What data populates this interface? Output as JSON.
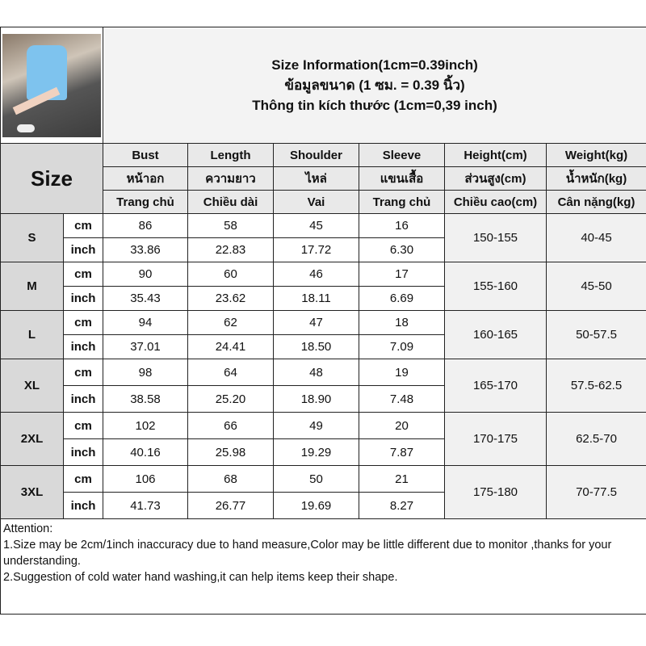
{
  "title": {
    "line1": "Size Information(1cm=0.39inch)",
    "line2": "ข้อมูลขนาด (1 ซม. = 0.39 นิ้ว)",
    "line3": "Thông tin kích thước (1cm=0,39 inch)"
  },
  "size_label": "Size",
  "headers": [
    {
      "en": "Bust",
      "th": "หน้าอก",
      "vi": "Trang chủ"
    },
    {
      "en": "Length",
      "th": "ความยาว",
      "vi": "Chiều dài"
    },
    {
      "en": "Shoulder",
      "th": "ไหล่",
      "vi": "Vai"
    },
    {
      "en": "Sleeve",
      "th": "แขนเสื้อ",
      "vi": "Trang chủ"
    },
    {
      "en": "Height(cm)",
      "th": "ส่วนสูง(cm)",
      "vi": "Chiều cao(cm)"
    },
    {
      "en": "Weight(kg)",
      "th": "น้ำหนัก(kg)",
      "vi": "Cân nặng(kg)"
    }
  ],
  "units": {
    "cm": "cm",
    "inch": "inch"
  },
  "rows": [
    {
      "size": "S",
      "cm": [
        "86",
        "58",
        "45",
        "16"
      ],
      "inch": [
        "33.86",
        "22.83",
        "17.72",
        "6.30"
      ],
      "height": "150-155",
      "weight": "40-45"
    },
    {
      "size": "M",
      "cm": [
        "90",
        "60",
        "46",
        "17"
      ],
      "inch": [
        "35.43",
        "23.62",
        "18.11",
        "6.69"
      ],
      "height": "155-160",
      "weight": "45-50"
    },
    {
      "size": "L",
      "cm": [
        "94",
        "62",
        "47",
        "18"
      ],
      "inch": [
        "37.01",
        "24.41",
        "18.50",
        "7.09"
      ],
      "height": "160-165",
      "weight": "50-57.5"
    },
    {
      "size": "XL",
      "cm": [
        "98",
        "64",
        "48",
        "19"
      ],
      "inch": [
        "38.58",
        "25.20",
        "18.90",
        "7.48"
      ],
      "height": "165-170",
      "weight": "57.5-62.5"
    },
    {
      "size": "2XL",
      "cm": [
        "102",
        "66",
        "49",
        "20"
      ],
      "inch": [
        "40.16",
        "25.98",
        "19.29",
        "7.87"
      ],
      "height": "170-175",
      "weight": "62.5-70"
    },
    {
      "size": "3XL",
      "cm": [
        "106",
        "68",
        "50",
        "21"
      ],
      "inch": [
        "41.73",
        "26.77",
        "19.69",
        "8.27"
      ],
      "height": "175-180",
      "weight": "70-77.5"
    }
  ],
  "notes": {
    "heading": "Attention:",
    "line1": "1.Size may be 2cm/1inch inaccuracy due to hand measure,Color may be little different due to monitor ,thanks for your understanding.",
    "line2": "2.Suggestion of cold water hand washing,it can help items keep their shape."
  }
}
